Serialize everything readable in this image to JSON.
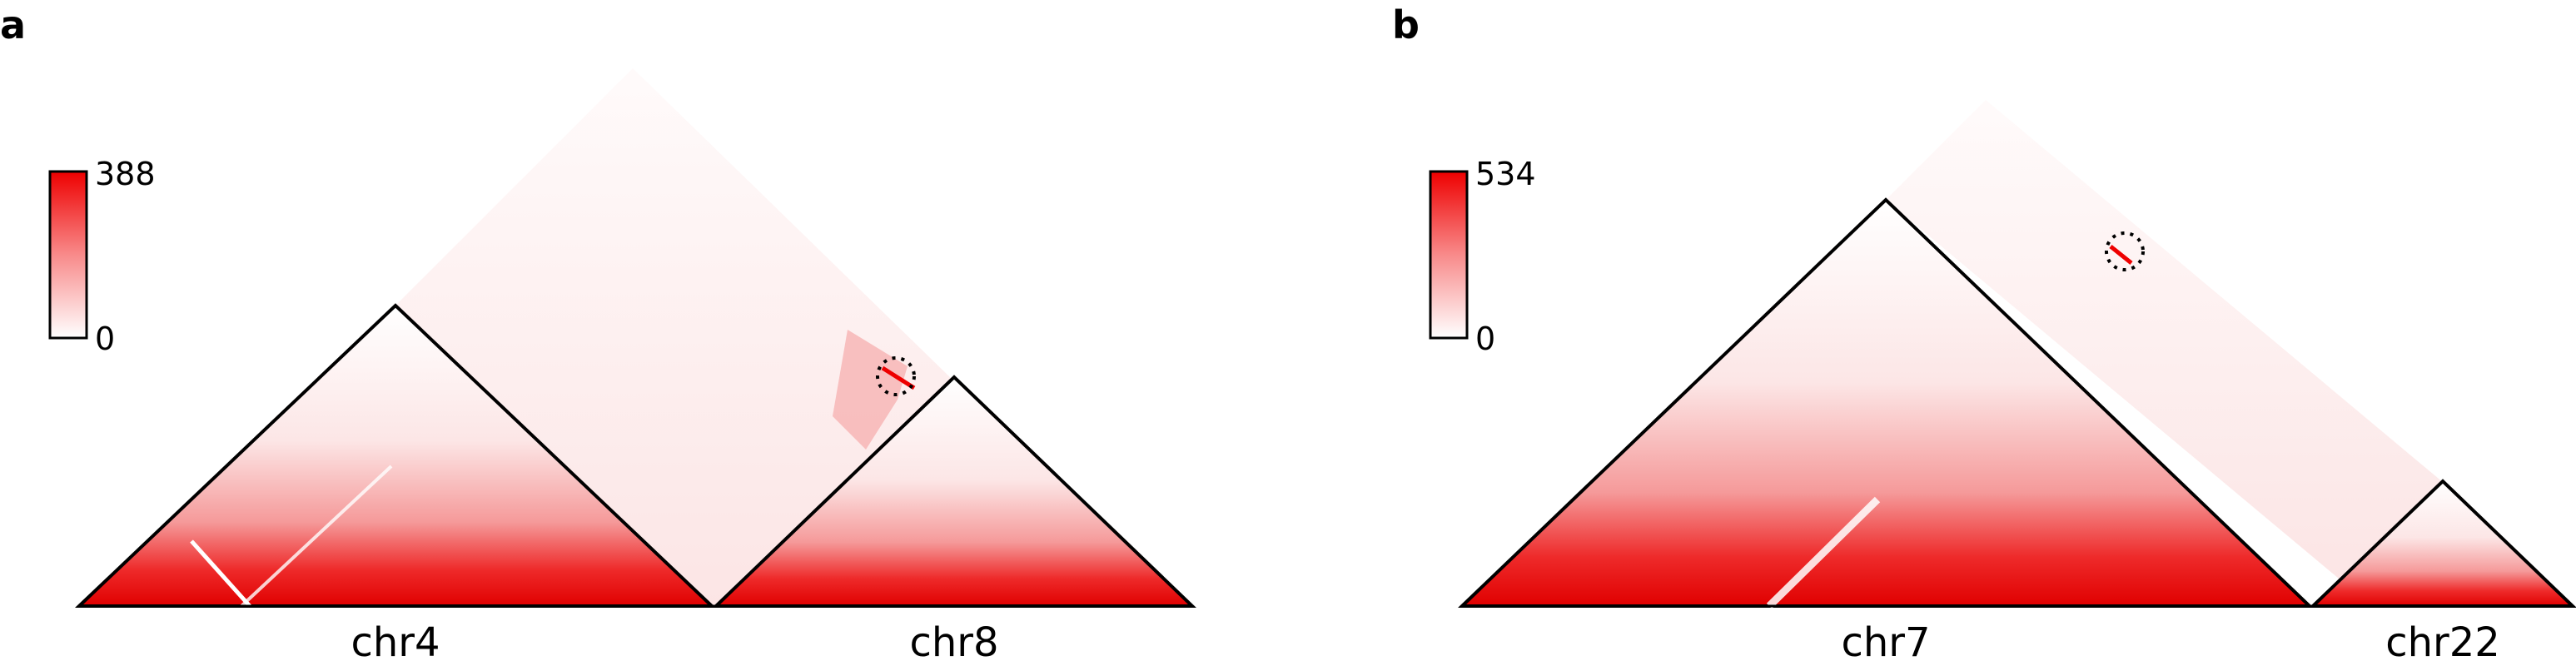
{
  "colors": {
    "heat_high": "#ee0000",
    "heat_low": "#ffffff",
    "outline": "#000000"
  },
  "panels": [
    {
      "letter": "a",
      "colorbar": {
        "max": "388",
        "min": "0"
      },
      "chromosomes": [
        {
          "label": "chr4"
        },
        {
          "label": "chr8"
        }
      ],
      "highlight": "dotted-circle"
    },
    {
      "letter": "b",
      "colorbar": {
        "max": "534",
        "min": "0"
      },
      "chromosomes": [
        {
          "label": "chr7"
        },
        {
          "label": "chr22"
        }
      ],
      "highlight": "dotted-circle"
    }
  ]
}
